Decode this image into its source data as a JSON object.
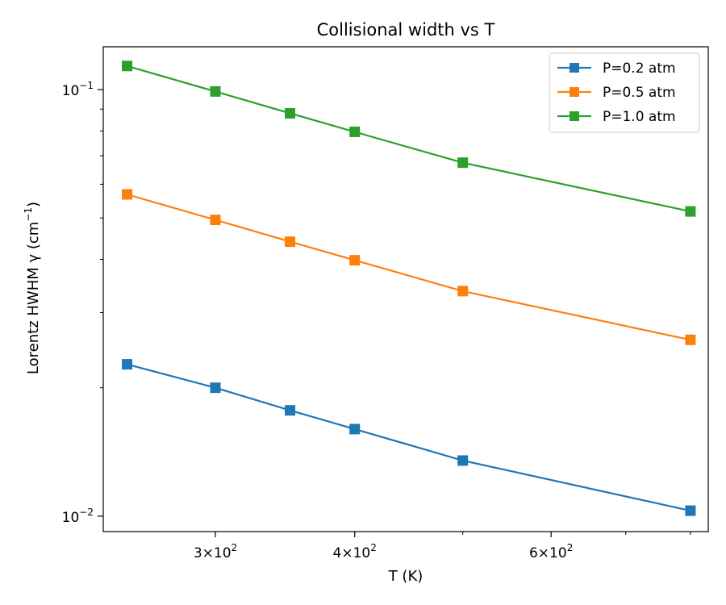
{
  "chart_data": {
    "type": "line",
    "title": "Collisional width vs T",
    "xlabel": "T (K)",
    "ylabel_main": "Lorentz HWHM γ (cm",
    "ylabel_sup": "−1",
    "ylabel_tail": ")",
    "xscale": "log",
    "yscale": "log",
    "xlim": [
      238,
      830
    ],
    "ylim": [
      0.0092,
      0.126
    ],
    "grid": false,
    "legend_position": "top-right",
    "x": [
      250,
      300,
      350,
      400,
      500,
      800
    ],
    "x_ticks": [
      {
        "value": 300,
        "base": "3×10",
        "exp": "2"
      },
      {
        "value": 400,
        "base": "4×10",
        "exp": "2"
      },
      {
        "value": 600,
        "base": "6×10",
        "exp": "2"
      }
    ],
    "x_minor_ticks": [
      500,
      700,
      800
    ],
    "y_ticks": [
      {
        "value": 0.1,
        "base": "10",
        "exp": "−1"
      },
      {
        "value": 0.01,
        "base": "10",
        "exp": "−2"
      }
    ],
    "y_minor_ticks": [
      0.02,
      0.03,
      0.04,
      0.05,
      0.06,
      0.07,
      0.08,
      0.09
    ],
    "series": [
      {
        "name": "P=0.2 atm",
        "color": "#1f77b4",
        "values": [
          0.0227,
          0.02,
          0.0177,
          0.016,
          0.0135,
          0.0103
        ]
      },
      {
        "name": "P=0.5 atm",
        "color": "#ff7f0e",
        "values": [
          0.0568,
          0.0495,
          0.044,
          0.0398,
          0.0337,
          0.0259
        ]
      },
      {
        "name": "P=1.0 atm",
        "color": "#2ca02c",
        "values": [
          0.1136,
          0.099,
          0.088,
          0.0796,
          0.0674,
          0.0518
        ]
      }
    ]
  }
}
